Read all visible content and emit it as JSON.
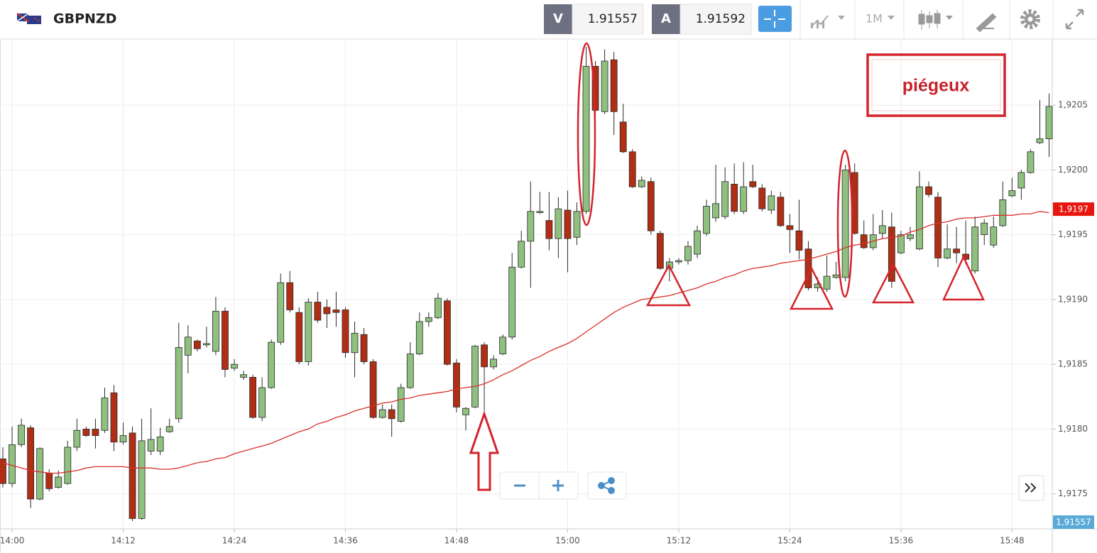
{
  "header": {
    "symbol": "GBPNZD",
    "bid_label": "V",
    "bid": 1.91557,
    "ask_label": "A",
    "ask": 1.91592,
    "timeframe": "1M"
  },
  "chart_data": {
    "type": "candlestick",
    "categories": [
      null,
      "14:00",
      null,
      null,
      null,
      null,
      null,
      null,
      null,
      null,
      null,
      null,
      null,
      "14:12",
      null,
      null,
      null,
      null,
      null,
      null,
      null,
      null,
      null,
      null,
      null,
      "14:24",
      null,
      null,
      null,
      null,
      null,
      null,
      null,
      null,
      null,
      null,
      null,
      "14:36",
      null,
      null,
      null,
      null,
      null,
      null,
      null,
      null,
      null,
      null,
      null,
      "14:48",
      null,
      null,
      null,
      null,
      null,
      null,
      null,
      null,
      null,
      null,
      null,
      "15:00",
      null,
      null,
      null,
      null,
      null,
      null,
      null,
      null,
      null,
      null,
      null,
      "15:12",
      null,
      null,
      null,
      null,
      null,
      null,
      null,
      null,
      null,
      null,
      null,
      "15:24",
      null,
      null,
      null,
      null,
      null,
      null,
      null,
      null,
      null,
      null,
      null,
      "15:36",
      null,
      null,
      null,
      null,
      null,
      null,
      null,
      null,
      null,
      null,
      null,
      "15:48",
      null,
      null,
      null,
      null
    ],
    "open": [
      1.91777,
      1.91758,
      1.91788,
      1.91801,
      1.91746,
      1.91766,
      1.91755,
      1.91758,
      1.91786,
      1.918,
      1.918,
      1.91799,
      1.91828,
      1.9179,
      1.91797,
      1.91731,
      1.91783,
      1.91783,
      1.91798,
      1.91808,
      1.91857,
      1.91868,
      1.91865,
      1.9186,
      1.91891,
      1.91847,
      1.9184,
      1.9184,
      1.91809,
      1.91832,
      1.91867,
      1.91913,
      1.9189,
      1.91852,
      1.91898,
      1.91894,
      1.91892,
      1.91892,
      1.91859,
      1.91873,
      1.91852,
      1.91809,
      1.91815,
      1.91806,
      1.91832,
      1.91858,
      1.91883,
      1.91886,
      1.91899,
      1.91851,
      1.91811,
      1.91817,
      1.91865,
      1.91848,
      1.91858,
      1.91871,
      1.91925,
      1.91945,
      1.91967,
      1.91961,
      1.91947,
      1.91969,
      1.91948,
      1.91968,
      1.9208,
      1.92045,
      1.92085,
      1.92037,
      1.92014,
      1.91987,
      1.91991,
      1.91951,
      1.91924,
      1.91929,
      1.9193,
      1.91935,
      1.91951,
      1.91963,
      1.91964,
      1.91989,
      1.91968,
      1.91991,
      1.91986,
      1.91969,
      1.91979,
      1.91957,
      1.91953,
      1.91939,
      1.91909,
      1.91908,
      1.91917,
      1.91917,
      1.91998,
      1.9195,
      1.9194,
      1.91951,
      1.91956,
      1.91936,
      1.91947,
      1.91939,
      1.91987,
      1.91979,
      1.91932,
      1.91939,
      1.91935,
      1.91922,
      1.9195,
      1.91942,
      1.91957,
      1.9198,
      1.91986,
      1.91998,
      1.92021,
      1.92024
    ],
    "high": [
      1.91786,
      1.91802,
      1.91808,
      1.91803,
      1.91786,
      1.91769,
      1.91768,
      1.91791,
      1.91808,
      1.91802,
      1.91808,
      1.91832,
      1.91834,
      1.91805,
      1.91802,
      1.91808,
      1.91816,
      1.91801,
      1.91808,
      1.91882,
      1.9188,
      1.91869,
      1.91879,
      1.91902,
      1.91894,
      1.91854,
      1.91845,
      1.91842,
      1.9184,
      1.91869,
      1.9192,
      1.91922,
      1.91894,
      1.91901,
      1.91906,
      1.919,
      1.91906,
      1.91894,
      1.91883,
      1.91878,
      1.91854,
      1.91819,
      1.91819,
      1.91835,
      1.91867,
      1.9189,
      1.9189,
      1.91905,
      1.91901,
      1.91854,
      1.91817,
      1.91865,
      1.91867,
      1.91857,
      1.91873,
      1.91936,
      1.91953,
      1.91991,
      1.91983,
      1.91983,
      1.91979,
      1.91984,
      1.91975,
      1.92095,
      1.92084,
      1.92093,
      1.92091,
      1.92051,
      1.92016,
      1.91995,
      1.91994,
      1.91953,
      1.91932,
      1.91932,
      1.91945,
      1.91957,
      1.91977,
      1.92004,
      1.92002,
      1.92005,
      1.92006,
      1.92004,
      1.91989,
      1.91984,
      1.91983,
      1.91966,
      1.91977,
      1.91945,
      1.91917,
      1.91934,
      1.91929,
      1.92004,
      1.92005,
      1.91961,
      1.91966,
      1.91969,
      1.91967,
      1.91953,
      1.91956,
      1.91999,
      1.91991,
      1.91983,
      1.91958,
      1.91956,
      1.91961,
      1.91964,
      1.91962,
      1.91964,
      1.91991,
      1.91994,
      1.92,
      1.92016,
      1.92054,
      1.92059
    ],
    "low": [
      1.91755,
      1.91755,
      1.91786,
      1.91739,
      1.91745,
      1.91752,
      1.91754,
      1.91757,
      1.91783,
      1.91794,
      1.91785,
      1.91797,
      1.91783,
      1.91788,
      1.91729,
      1.9173,
      1.9178,
      1.9178,
      1.91797,
      1.91805,
      1.91843,
      1.9186,
      1.91863,
      1.91857,
      1.9184,
      1.91845,
      1.91838,
      1.91808,
      1.91806,
      1.91831,
      1.91865,
      1.9189,
      1.9185,
      1.91849,
      1.91882,
      1.91878,
      1.91879,
      1.91855,
      1.9184,
      1.9185,
      1.91808,
      1.91808,
      1.91794,
      1.91805,
      1.91831,
      1.91857,
      1.91879,
      1.91885,
      1.91849,
      1.91813,
      1.91799,
      1.91816,
      1.91814,
      1.91846,
      1.91857,
      1.91869,
      1.91924,
      1.91909,
      1.91966,
      1.91938,
      1.91932,
      1.91921,
      1.91942,
      1.91966,
      1.92043,
      1.92043,
      1.92027,
      1.92013,
      1.91986,
      1.91986,
      1.9195,
      1.91923,
      1.91914,
      1.91927,
      1.91927,
      1.91932,
      1.91949,
      1.9196,
      1.91962,
      1.91966,
      1.91966,
      1.91986,
      1.91968,
      1.91966,
      1.91956,
      1.91936,
      1.91931,
      1.91907,
      1.91906,
      1.91906,
      1.91916,
      1.91914,
      1.9195,
      1.91939,
      1.91938,
      1.91947,
      1.91909,
      1.91935,
      1.91945,
      1.91938,
      1.91979,
      1.91925,
      1.91931,
      1.91928,
      1.91927,
      1.9192,
      1.91942,
      1.9194,
      1.91956,
      1.91979,
      1.91977,
      1.91997,
      1.9202,
      1.9201
    ],
    "close": [
      1.91758,
      1.91788,
      1.91803,
      1.91746,
      1.91785,
      1.91754,
      1.91763,
      1.91786,
      1.91799,
      1.91795,
      1.91795,
      1.91824,
      1.9179,
      1.91795,
      1.91731,
      1.91791,
      1.91792,
      1.91794,
      1.91802,
      1.91863,
      1.91871,
      1.91862,
      1.91866,
      1.91891,
      1.91846,
      1.9185,
      1.91842,
      1.91809,
      1.91832,
      1.91867,
      1.91913,
      1.91892,
      1.91852,
      1.91898,
      1.91884,
      1.91889,
      1.9189,
      1.91859,
      1.91874,
      1.91852,
      1.91809,
      1.91815,
      1.91808,
      1.91832,
      1.91858,
      1.91883,
      1.91886,
      1.91901,
      1.9185,
      1.91817,
      1.91816,
      1.91864,
      1.91848,
      1.91854,
      1.91871,
      1.91925,
      1.91945,
      1.91968,
      1.91968,
      1.91947,
      1.9197,
      1.91947,
      1.91968,
      1.9208,
      1.92046,
      1.92084,
      1.92045,
      1.92014,
      1.91987,
      1.91992,
      1.91953,
      1.91924,
      1.91929,
      1.9193,
      1.91941,
      1.91953,
      1.91972,
      1.91974,
      1.91991,
      1.91968,
      1.91987,
      1.91987,
      1.9197,
      1.9198,
      1.91957,
      1.91954,
      1.91938,
      1.91909,
      1.91912,
      1.91918,
      1.91919,
      1.92,
      1.91951,
      1.9194,
      1.9195,
      1.91957,
      1.91914,
      1.9195,
      1.9195,
      1.91987,
      1.91981,
      1.91932,
      1.91939,
      1.91936,
      1.91931,
      1.91956,
      1.91959,
      1.91956,
      1.91977,
      1.91984,
      1.91998,
      1.92014,
      1.92024,
      1.92049
    ],
    "up_color": "#8fc07f",
    "down_color": "#b02e14",
    "moving_average": {
      "color": "#d9302c",
      "values": [
        1.91774,
        1.91772,
        1.9177,
        1.91768,
        1.91767,
        1.91766,
        1.91766,
        1.91767,
        1.91768,
        1.9177,
        1.91771,
        1.91771,
        1.91771,
        1.91771,
        1.9177,
        1.9177,
        1.9177,
        1.91769,
        1.91769,
        1.9177,
        1.91772,
        1.91774,
        1.91775,
        1.91777,
        1.91778,
        1.91781,
        1.91783,
        1.91785,
        1.91787,
        1.91789,
        1.91792,
        1.91795,
        1.91798,
        1.918,
        1.91804,
        1.91806,
        1.91809,
        1.91811,
        1.91814,
        1.91816,
        1.91818,
        1.9182,
        1.91821,
        1.91823,
        1.91824,
        1.91826,
        1.91827,
        1.91828,
        1.91829,
        1.91831,
        1.91832,
        1.91833,
        1.91835,
        1.91838,
        1.91842,
        1.91845,
        1.91849,
        1.91853,
        1.91856,
        1.9186,
        1.91863,
        1.91866,
        1.9187,
        1.91875,
        1.9188,
        1.91885,
        1.9189,
        1.91894,
        1.91897,
        1.919,
        1.91901,
        1.91902,
        1.91903,
        1.91905,
        1.91907,
        1.91909,
        1.91912,
        1.91914,
        1.91917,
        1.91919,
        1.91922,
        1.91924,
        1.91925,
        1.91926,
        1.91928,
        1.91929,
        1.9193,
        1.91931,
        1.91933,
        1.91935,
        1.91937,
        1.9194,
        1.91942,
        1.91943,
        1.91945,
        1.91947,
        1.91948,
        1.91949,
        1.91952,
        1.91954,
        1.91957,
        1.91959,
        1.9196,
        1.91962,
        1.91963,
        1.91963,
        1.91964,
        1.91965,
        1.91965,
        1.91965,
        1.91966,
        1.91966,
        1.91968,
        1.91967
      ]
    },
    "ylim": [
      1.91723,
      1.92101
    ],
    "yticks": [
      {
        "value": 1.9175,
        "label": "1,9175"
      },
      {
        "value": 1.918,
        "label": "1,9180"
      },
      {
        "value": 1.9185,
        "label": "1,9185"
      },
      {
        "value": 1.919,
        "label": "1,9190"
      },
      {
        "value": 1.9195,
        "label": "1,9195"
      },
      {
        "value": 1.92,
        "label": "1,9200"
      },
      {
        "value": 1.9205,
        "label": "1,9205"
      }
    ],
    "grid": true,
    "price_tags": [
      {
        "value": 1.9197,
        "label": "1,9197",
        "color": "#e8150e"
      },
      {
        "value": 1.91557,
        "label": "1,91557",
        "color": "#5aaad8"
      }
    ],
    "annotation": "piégeux"
  }
}
